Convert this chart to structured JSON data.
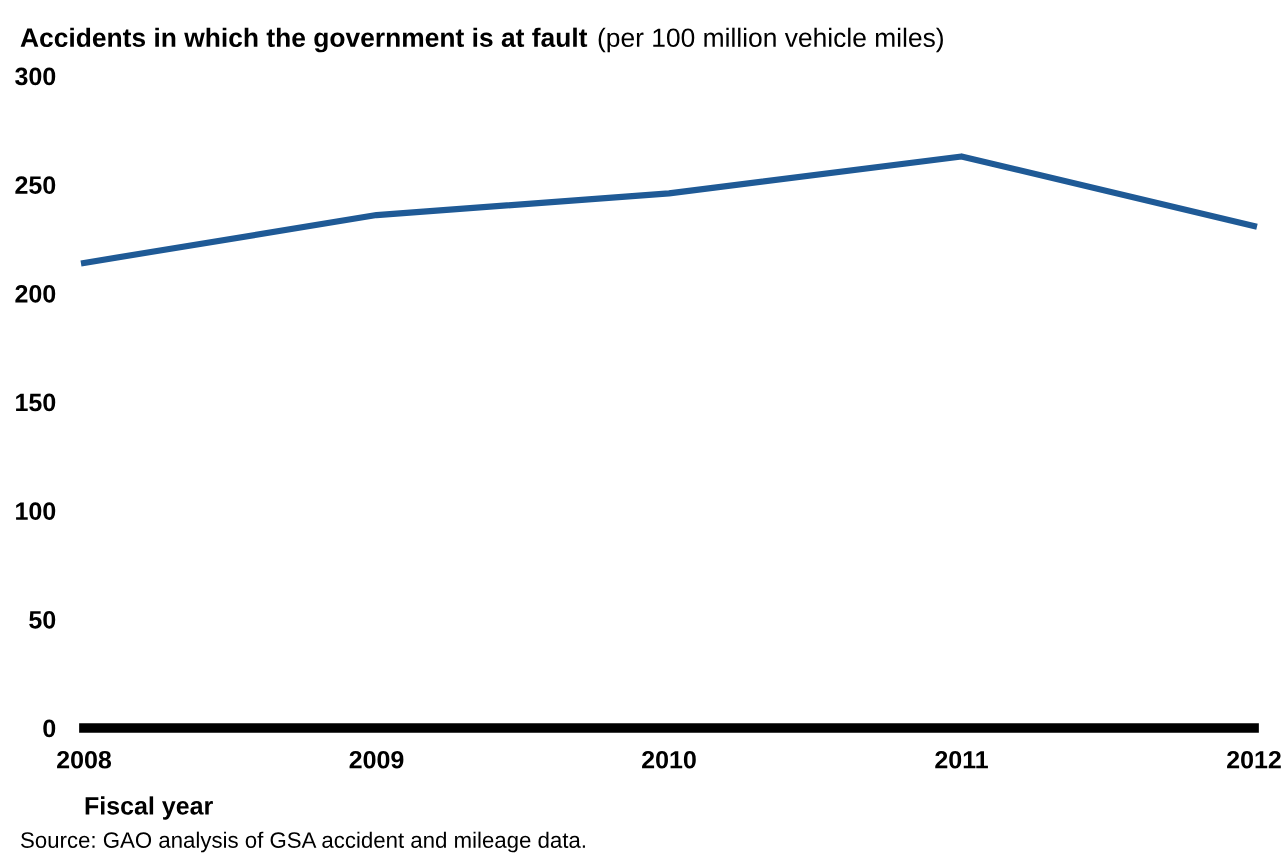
{
  "chart_data": {
    "type": "line",
    "title": "Accidents in which the government is at fault",
    "subtitle": "(per 100 million vehicle miles)",
    "xlabel": "Fiscal year",
    "x": [
      2008,
      2009,
      2010,
      2011,
      2012
    ],
    "series": [
      {
        "color": "#1f5a96",
        "values": [
          214,
          236,
          246,
          263,
          231
        ]
      }
    ],
    "xlim": [
      2008,
      2012
    ],
    "xticks": [
      2008,
      2009,
      2010,
      2011,
      2012
    ],
    "ylim": [
      0,
      300
    ],
    "yticks": [
      0,
      50,
      100,
      150,
      200,
      250,
      300
    ],
    "grid": false,
    "legend": false,
    "marker": "none",
    "line_style": "solid",
    "annotations": [
      "Source: GAO analysis of GSA accident and mileage data."
    ]
  }
}
